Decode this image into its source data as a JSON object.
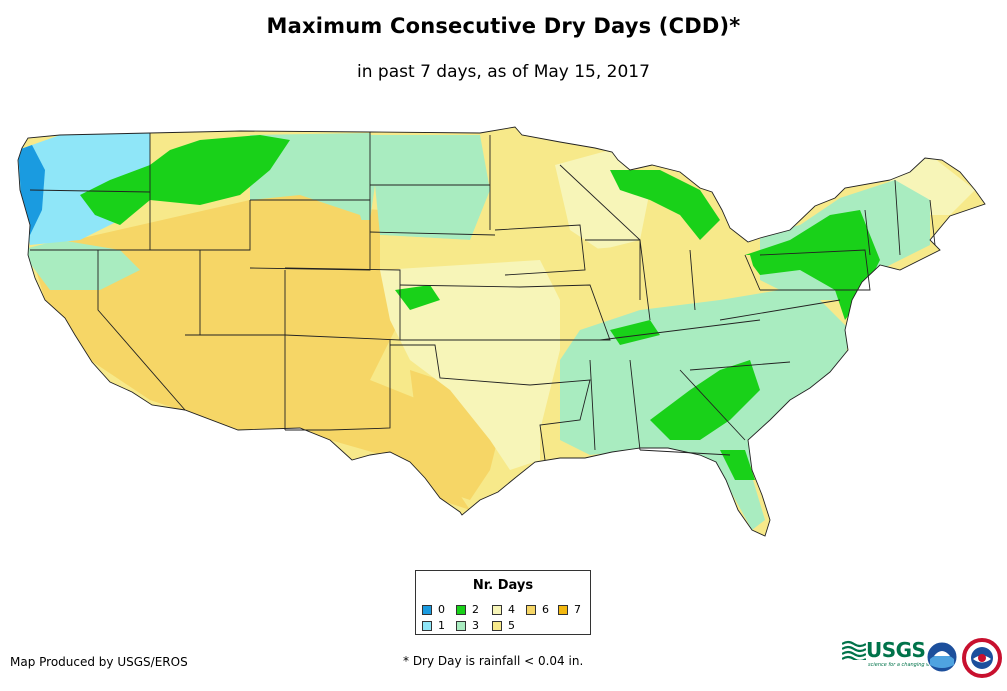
{
  "title": "Maximum Consecutive Dry Days (CDD)*",
  "subtitle": "in past 7 days, as of May 15, 2017",
  "legend": {
    "title": "Nr. Days",
    "items": [
      {
        "label": "0",
        "color": "#1a9be0"
      },
      {
        "label": "1",
        "color": "#8fe6f8"
      },
      {
        "label": "2",
        "color": "#19d119"
      },
      {
        "label": "3",
        "color": "#a9ecc0"
      },
      {
        "label": "4",
        "color": "#f7f5b8"
      },
      {
        "label": "5",
        "color": "#f7e98a"
      },
      {
        "label": "6",
        "color": "#f6d666"
      },
      {
        "label": "7",
        "color": "#f3b80f"
      }
    ]
  },
  "credit": "Map Produced by USGS/EROS",
  "footnote": "* Dry Day is rainfall < 0.04 in.",
  "logos": {
    "usgs": "USGS",
    "usgs_tagline": "science for a changing world",
    "noaa": "NOAA",
    "nws": "NWS"
  }
}
